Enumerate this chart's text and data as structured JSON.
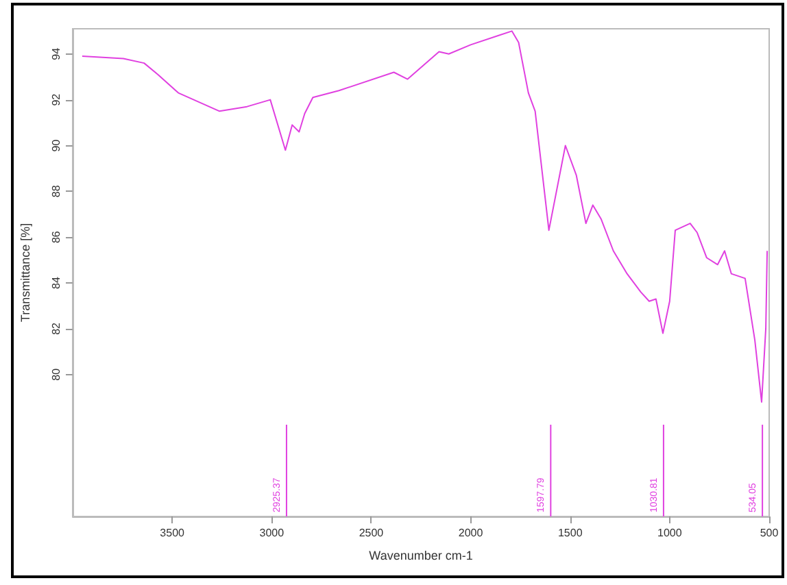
{
  "chart_data": {
    "type": "line",
    "xlabel": "Wavenumber cm-1",
    "ylabel": "Transmittance [%]",
    "xlim": [
      4000,
      500
    ],
    "xticks": [
      3500,
      3000,
      2500,
      2000,
      1500,
      1000,
      500
    ],
    "ylim": [
      73.8,
      95.1
    ],
    "yticks": [
      80,
      82,
      84,
      86,
      88,
      90,
      92,
      94
    ],
    "grid": false,
    "marker": "none",
    "line_style": "solid",
    "ref_lines": [
      {
        "axis": "x",
        "value": 2925.37,
        "label": "2925.37",
        "color": "#e040e0"
      },
      {
        "axis": "x",
        "value": 1597.79,
        "label": "1597.79",
        "color": "#e040e0"
      },
      {
        "axis": "x",
        "value": 1030.81,
        "label": "1030.81",
        "color": "#e040e0"
      },
      {
        "axis": "x",
        "value": 534.05,
        "label": "534.05",
        "color": "#e040e0"
      }
    ],
    "series": [
      {
        "color": "#e040e0",
        "x": [
          3952,
          3745,
          3641,
          3572,
          3469,
          3262,
          3124,
          3007,
          2931,
          2897,
          2862,
          2834,
          2793,
          2662,
          2386,
          2317,
          2159,
          2110,
          2000,
          1862,
          1793,
          1759,
          1710,
          1676,
          1607,
          1524,
          1469,
          1421,
          1386,
          1345,
          1283,
          1214,
          1145,
          1103,
          1069,
          1034,
          1000,
          972,
          897,
          862,
          814,
          759,
          724,
          690,
          621,
          572,
          538,
          517,
          510
        ],
        "values": [
          93.9,
          93.8,
          93.6,
          93.1,
          92.3,
          91.5,
          91.7,
          92.0,
          89.8,
          90.9,
          90.6,
          91.4,
          92.1,
          92.4,
          93.2,
          92.9,
          94.1,
          94.0,
          94.4,
          94.8,
          95.0,
          94.5,
          92.3,
          91.5,
          86.3,
          90.0,
          88.7,
          86.6,
          87.4,
          86.8,
          85.4,
          84.4,
          83.6,
          83.2,
          83.3,
          81.8,
          83.2,
          86.3,
          86.6,
          86.2,
          85.1,
          84.8,
          85.4,
          84.4,
          84.2,
          81.5,
          78.8,
          82.0,
          85.4
        ]
      }
    ]
  }
}
